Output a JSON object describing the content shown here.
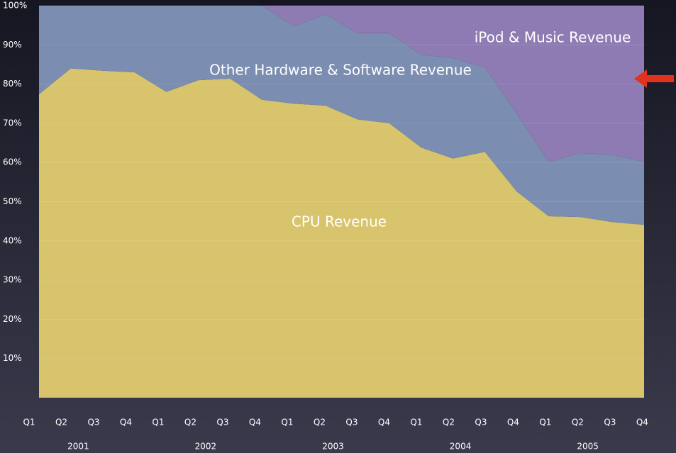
{
  "chart_data": {
    "type": "stacked_area_100",
    "categories": [
      "Q1",
      "Q2",
      "Q3",
      "Q4",
      "Q1",
      "Q2",
      "Q3",
      "Q4",
      "Q1",
      "Q2",
      "Q3",
      "Q4",
      "Q1",
      "Q2",
      "Q3",
      "Q4",
      "Q1",
      "Q2",
      "Q3",
      "Q4"
    ],
    "category_groups": [
      "2001",
      "2002",
      "2003",
      "2004",
      "2005"
    ],
    "series": [
      {
        "name": "CPU Revenue",
        "color": "#d8c46c",
        "values": [
          77.4,
          84,
          83.4,
          83,
          78,
          81,
          81.4,
          76,
          75,
          74.5,
          71,
          70,
          63.8,
          61,
          62.7,
          52.6,
          46.3,
          46.1,
          44.8,
          44.1
        ]
      },
      {
        "name": "Other Hardware & Software Revenue",
        "color": "#7b8db0",
        "values": [
          22.6,
          16,
          16.6,
          17,
          22,
          19,
          18.6,
          24,
          19.8,
          23.3,
          22,
          23,
          23.7,
          25.6,
          21.6,
          19.9,
          13.9,
          16.3,
          17.2,
          16.1
        ]
      },
      {
        "name": "iPod & Music Revenue",
        "color": "#8e7bb3",
        "values": [
          0,
          0,
          0,
          0,
          0,
          0,
          0,
          0,
          5.2,
          2.2,
          7,
          7,
          12.5,
          13.4,
          15.7,
          27.5,
          39.8,
          37.6,
          38,
          39.8
        ]
      }
    ],
    "ylim": [
      0,
      100
    ],
    "yticks": [
      {
        "value": 10,
        "label": "10%"
      },
      {
        "value": 20,
        "label": "20%"
      },
      {
        "value": 30,
        "label": "30%"
      },
      {
        "value": 40,
        "label": "40%"
      },
      {
        "value": 50,
        "label": "50%"
      },
      {
        "value": 60,
        "label": "60%"
      },
      {
        "value": 70,
        "label": "70%"
      },
      {
        "value": 80,
        "label": "80%"
      },
      {
        "value": 90,
        "label": "90%"
      },
      {
        "value": 100,
        "label": "100%"
      }
    ],
    "grid": true
  }
}
